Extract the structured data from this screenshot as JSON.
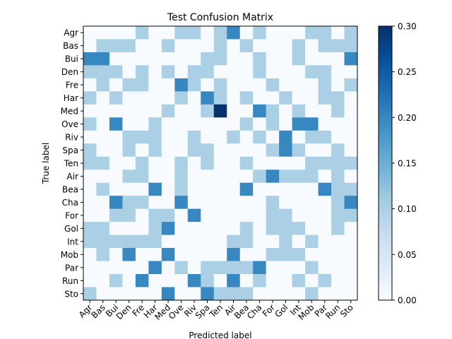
{
  "chart_data": {
    "type": "heatmap",
    "title": "Test Confusion Matrix",
    "xlabel": "Predicted label",
    "ylabel": "True label",
    "x_categories": [
      "Agr",
      "Bas",
      "Bui",
      "Den",
      "Fre",
      "Har",
      "Med",
      "Ove",
      "Riv",
      "Spa",
      "Ten",
      "Air",
      "Bea",
      "Cha",
      "For",
      "Gol",
      "Int",
      "Mob",
      "Par",
      "Run",
      "Sto"
    ],
    "y_categories": [
      "Agr",
      "Bas",
      "Bui",
      "Den",
      "Fre",
      "Har",
      "Med",
      "Ove",
      "Riv",
      "Spa",
      "Ten",
      "Air",
      "Bea",
      "Cha",
      "For",
      "Gol",
      "Int",
      "Mob",
      "Par",
      "Run",
      "Sto"
    ],
    "colorbar": {
      "min": 0.0,
      "max": 0.3,
      "ticks": [
        "0.00",
        "0.05",
        "0.10",
        "0.15",
        "0.20",
        "0.25",
        "0.30"
      ]
    },
    "colormap": "Blues",
    "values": [
      [
        0,
        0,
        0,
        0,
        0.1,
        0,
        0,
        0.1,
        0.1,
        0,
        0.1,
        0.2,
        0,
        0.1,
        0,
        0,
        0,
        0.1,
        0.1,
        0,
        0.1
      ],
      [
        0,
        0.1,
        0.1,
        0.1,
        0,
        0,
        0.1,
        0,
        0,
        0,
        0.1,
        0,
        0.1,
        0,
        0,
        0,
        0.1,
        0,
        0.1,
        0.1,
        0.1
      ],
      [
        0.2,
        0.2,
        0,
        0,
        0,
        0,
        0,
        0,
        0,
        0.1,
        0.1,
        0,
        0,
        0.1,
        0,
        0,
        0.1,
        0,
        0,
        0,
        0.2
      ],
      [
        0.1,
        0.1,
        0.1,
        0,
        0.1,
        0,
        0.1,
        0,
        0.1,
        0.1,
        0,
        0,
        0,
        0.1,
        0,
        0,
        0,
        0.1,
        0.1,
        0,
        0
      ],
      [
        0,
        0.1,
        0,
        0.1,
        0.1,
        0,
        0,
        0.2,
        0.1,
        0,
        0.1,
        0,
        0,
        0,
        0.1,
        0,
        0,
        0,
        0.1,
        0,
        0.1
      ],
      [
        0.1,
        0,
        0.1,
        0,
        0,
        0,
        0,
        0.1,
        0,
        0.2,
        0.1,
        0,
        0.1,
        0,
        0,
        0.1,
        0,
        0,
        0.1,
        0.1,
        0
      ],
      [
        0,
        0,
        0,
        0,
        0,
        0,
        0.1,
        0,
        0,
        0.1,
        0.3,
        0,
        0,
        0.2,
        0.1,
        0,
        0.1,
        0,
        0,
        0.1,
        0
      ],
      [
        0.1,
        0,
        0.2,
        0,
        0,
        0.1,
        0,
        0,
        0,
        0,
        0,
        0,
        0.1,
        0,
        0.1,
        0,
        0.2,
        0.2,
        0,
        0,
        0
      ],
      [
        0,
        0,
        0,
        0.1,
        0.1,
        0.1,
        0,
        0,
        0.1,
        0,
        0,
        0.1,
        0,
        0.1,
        0,
        0.2,
        0,
        0.1,
        0.1,
        0,
        0
      ],
      [
        0.1,
        0,
        0,
        0.1,
        0,
        0.1,
        0,
        0,
        0.1,
        0.1,
        0,
        0,
        0,
        0,
        0.1,
        0.2,
        0.1,
        0,
        0,
        0.1,
        0
      ],
      [
        0.1,
        0.1,
        0,
        0,
        0.1,
        0,
        0,
        0.1,
        0,
        0.1,
        0,
        0,
        0.1,
        0,
        0,
        0,
        0,
        0.1,
        0.1,
        0.1,
        0.1
      ],
      [
        0,
        0,
        0,
        0.1,
        0.1,
        0,
        0,
        0.1,
        0,
        0,
        0,
        0,
        0,
        0.1,
        0.2,
        0.1,
        0.1,
        0.1,
        0,
        0.1,
        0
      ],
      [
        0,
        0.1,
        0,
        0,
        0,
        0.2,
        0,
        0.1,
        0,
        0,
        0,
        0,
        0.2,
        0,
        0,
        0,
        0,
        0,
        0.2,
        0.1,
        0.1
      ],
      [
        0,
        0,
        0.2,
        0.1,
        0.1,
        0,
        0,
        0.2,
        0,
        0,
        0,
        0,
        0,
        0,
        0.1,
        0,
        0,
        0,
        0,
        0.1,
        0.2
      ],
      [
        0,
        0,
        0.1,
        0.1,
        0,
        0.1,
        0.1,
        0,
        0.2,
        0,
        0,
        0,
        0,
        0,
        0.1,
        0.1,
        0,
        0,
        0,
        0.1,
        0.1
      ],
      [
        0.1,
        0.1,
        0,
        0,
        0,
        0.1,
        0.2,
        0,
        0,
        0,
        0,
        0,
        0.1,
        0,
        0.1,
        0.1,
        0.1,
        0,
        0,
        0.1,
        0
      ],
      [
        0.1,
        0.1,
        0.1,
        0.1,
        0.1,
        0.1,
        0,
        0,
        0,
        0,
        0,
        0.1,
        0.1,
        0,
        0,
        0.1,
        0,
        0.1,
        0,
        0,
        0
      ],
      [
        0,
        0.1,
        0,
        0.2,
        0,
        0,
        0.2,
        0,
        0,
        0,
        0,
        0.2,
        0,
        0,
        0.1,
        0.1,
        0.1,
        0,
        0,
        0,
        0
      ],
      [
        0,
        0,
        0,
        0,
        0,
        0.2,
        0,
        0.1,
        0,
        0.1,
        0.1,
        0.1,
        0.1,
        0.2,
        0,
        0,
        0,
        0.1,
        0,
        0,
        0
      ],
      [
        0,
        0,
        0.1,
        0,
        0.2,
        0,
        0,
        0,
        0.2,
        0.1,
        0,
        0.2,
        0,
        0.1,
        0,
        0,
        0.1,
        0,
        0.1,
        0,
        0
      ],
      [
        0.1,
        0,
        0,
        0,
        0,
        0,
        0.2,
        0,
        0,
        0.2,
        0.1,
        0.1,
        0.1,
        0,
        0,
        0,
        0,
        0.1,
        0,
        0,
        0
      ]
    ]
  }
}
